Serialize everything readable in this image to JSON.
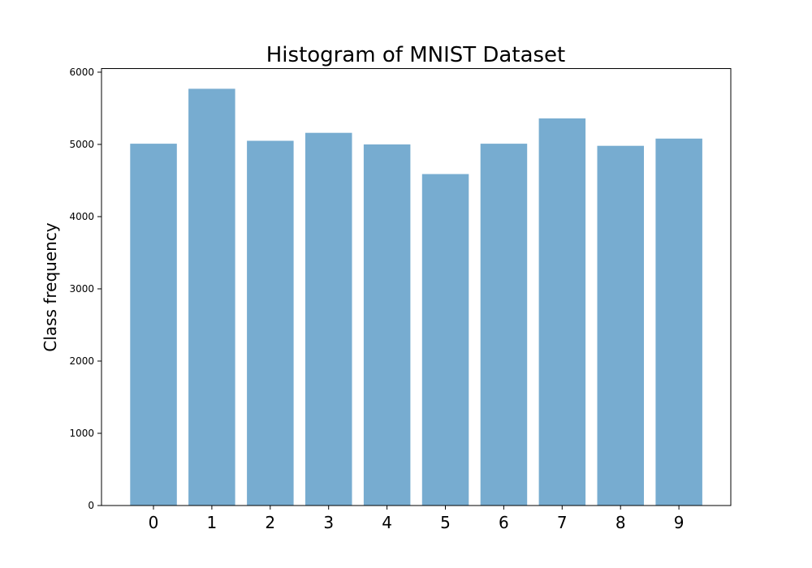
{
  "chart_data": {
    "type": "bar",
    "title": "Histogram of MNIST Dataset",
    "xlabel": "",
    "ylabel": "Class frequency",
    "categories": [
      "0",
      "1",
      "2",
      "3",
      "4",
      "5",
      "6",
      "7",
      "8",
      "9"
    ],
    "values": [
      5010,
      5770,
      5050,
      5160,
      5000,
      4590,
      5010,
      5360,
      4980,
      5080
    ],
    "yticks": [
      0,
      1000,
      2000,
      3000,
      4000,
      5000,
      6000
    ],
    "ylim": [
      0,
      6050
    ],
    "grid": false,
    "legend": "none",
    "bar_color": "#77acd0"
  }
}
